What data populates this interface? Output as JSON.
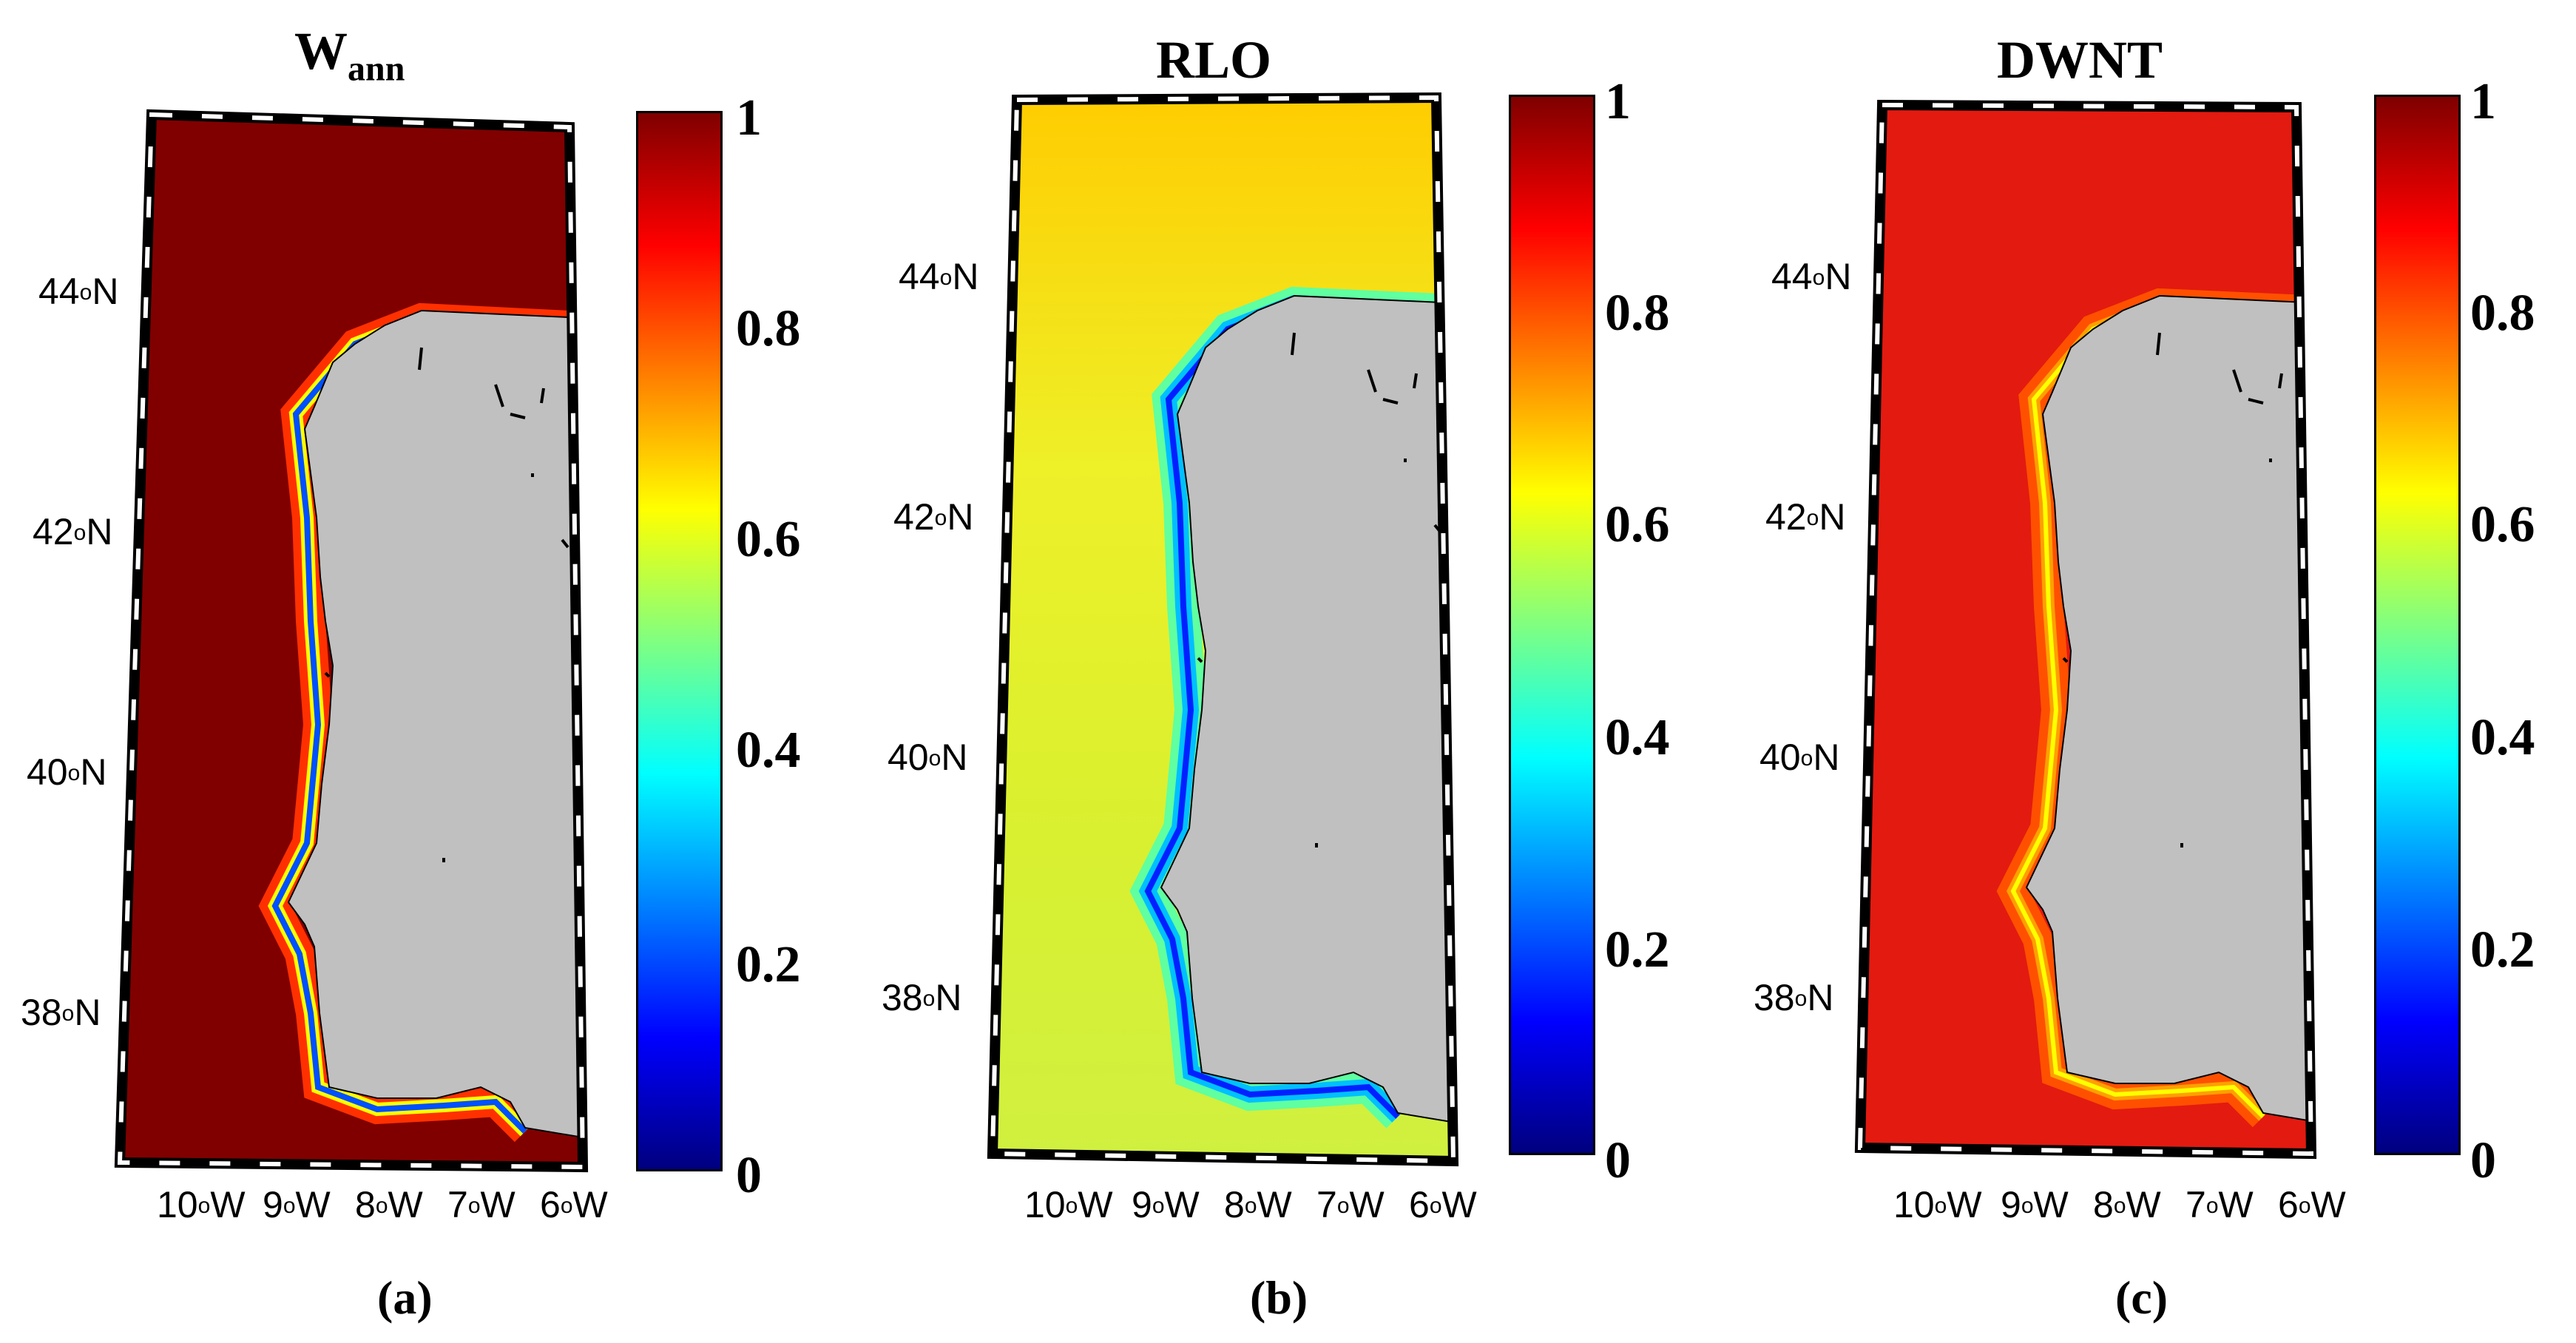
{
  "panels": [
    {
      "id": "a",
      "title_main": "W",
      "title_sub": "ann",
      "caption": "(a)",
      "ocean_base": "#800000",
      "coast_colors": [
        "#0000ff",
        "#00d0ff",
        "#a0ff60",
        "#ffff00",
        "#ff8000",
        "#ff0000",
        "#800000"
      ]
    },
    {
      "id": "b",
      "title_main": "RLO",
      "title_sub": "",
      "caption": "(b)",
      "ocean_base": "#d8f030",
      "coast_colors": [
        "#0000ff",
        "#0060ff",
        "#00c0ff",
        "#40ffd0",
        "#a0ff60",
        "#d8f030",
        "#e8f020"
      ]
    },
    {
      "id": "c",
      "title_main": "DWNT",
      "title_sub": "",
      "caption": "(c)",
      "ocean_base": "#e31a10",
      "coast_colors": [
        "#40ff80",
        "#ffff00",
        "#ffa000",
        "#ff5000",
        "#ff2000",
        "#e31a10",
        "#e31a10"
      ]
    }
  ],
  "lat_ticks": [
    "44",
    "42",
    "40",
    "38"
  ],
  "lat_suffix": "N",
  "lon_ticks": [
    "10",
    "9",
    "8",
    "7",
    "6"
  ],
  "lon_suffix": "W",
  "deg": "o",
  "colorbar_ticks": [
    "1",
    "0.8",
    "0.6",
    "0.4",
    "0.2",
    "0"
  ],
  "land_color": "#c0c0c0",
  "colormap": "jet"
}
